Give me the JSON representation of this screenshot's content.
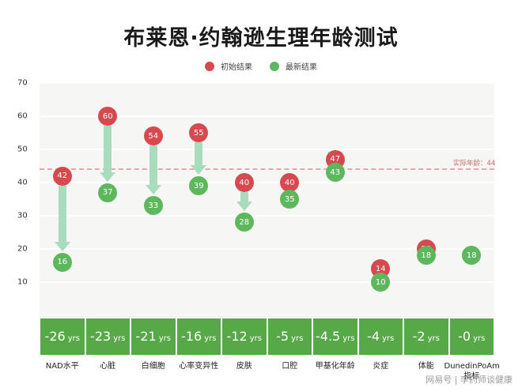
{
  "header": {
    "title": "布莱恩·约翰逊生理年龄测试"
  },
  "legend": {
    "items": [
      {
        "label": "初始结果",
        "color": "#d6494f"
      },
      {
        "label": "最新结果",
        "color": "#5db85d"
      }
    ]
  },
  "reference": {
    "label": "实际年龄：44",
    "value": 44
  },
  "watermark": "网易号 | 李药师谈健康",
  "chart_data": {
    "type": "scatter",
    "title": "布莱恩·约翰逊生理年龄测试",
    "xlabel": "",
    "ylabel": "",
    "ylim": [
      0,
      70
    ],
    "yticks": [
      10,
      20,
      30,
      40,
      50,
      60,
      70
    ],
    "grid": true,
    "legend_position": "top",
    "categories": [
      "NAD水平",
      "心脏",
      "白细胞",
      "心率变异性",
      "皮肤",
      "口腔",
      "甲基化年龄",
      "炎症",
      "体能",
      "DunedinPoAm指标"
    ],
    "series": [
      {
        "name": "初始结果",
        "color": "#d6494f",
        "values": [
          42,
          60,
          54,
          55,
          40,
          40,
          47,
          14,
          20,
          null
        ]
      },
      {
        "name": "最新结果",
        "color": "#5db85d",
        "values": [
          16,
          37,
          33,
          39,
          28,
          35,
          43,
          10,
          18,
          18
        ]
      }
    ],
    "differences": [
      {
        "value": "-26",
        "unit": "yrs"
      },
      {
        "value": "-23",
        "unit": "yrs"
      },
      {
        "value": "-21",
        "unit": "yrs"
      },
      {
        "value": "-16",
        "unit": "yrs"
      },
      {
        "value": "-12",
        "unit": "yrs"
      },
      {
        "value": "-5",
        "unit": "yrs"
      },
      {
        "value": "-4.5",
        "unit": "yrs"
      },
      {
        "value": "-4",
        "unit": "yrs"
      },
      {
        "value": "-2",
        "unit": "yrs"
      },
      {
        "value": "-0",
        "unit": "yrs"
      }
    ],
    "annotations": [
      {
        "type": "hline",
        "y": 44,
        "label": "实际年龄：44",
        "style": "dashed",
        "color": "#e4a9aa"
      }
    ]
  }
}
